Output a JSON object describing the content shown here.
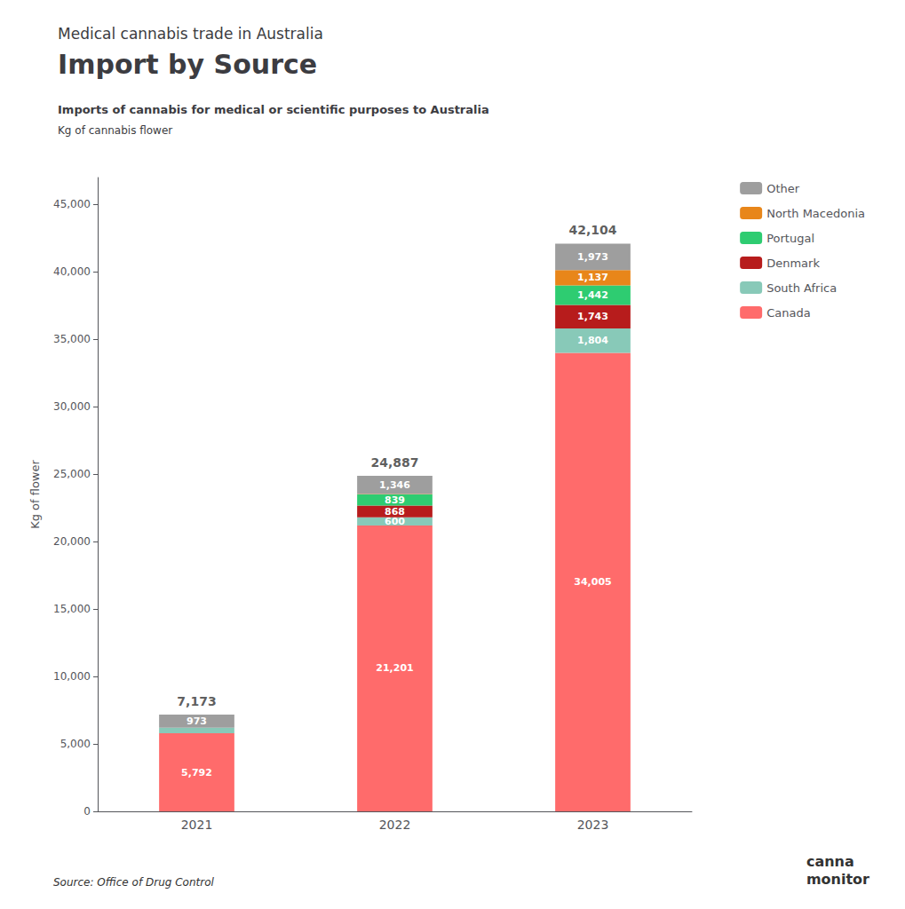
{
  "chart_data": {
    "type": "bar",
    "stacked": true,
    "title": [
      "Medical cannabis trade in Australia",
      "Import by Source"
    ],
    "subtitle": [
      "Imports of cannabis for medical or scientific purposes to Australia",
      "Kg of cannabis flower"
    ],
    "ylabel": "Kg of flower",
    "annotations": [
      "Source: Office of Drug Control",
      "canna\nmonitor"
    ],
    "categories": [
      "2021",
      "2022",
      "2023"
    ],
    "series": [
      {
        "name": "Canada",
        "color": "#FF6B6B",
        "values": [
          5792,
          21201,
          34005
        ],
        "value_labels": [
          "5,792",
          "21,201",
          "34,005"
        ]
      },
      {
        "name": "South Africa",
        "color": "#88C9B8",
        "values": [
          408,
          600,
          1804
        ],
        "value_labels": [
          null,
          "600",
          "1,804"
        ]
      },
      {
        "name": "Denmark",
        "color": "#B71C1C",
        "values": [
          0,
          868,
          1743
        ],
        "value_labels": [
          null,
          "868",
          "1,743"
        ]
      },
      {
        "name": "Portugal",
        "color": "#2ECC71",
        "values": [
          0,
          839,
          1442
        ],
        "value_labels": [
          null,
          "839",
          "1,442"
        ]
      },
      {
        "name": "North Macedonia",
        "color": "#E8861A",
        "values": [
          0,
          33,
          1137
        ],
        "value_labels": [
          null,
          null,
          "1,137"
        ]
      },
      {
        "name": "Other",
        "color": "#9E9E9E",
        "values": [
          973,
          1346,
          1973
        ],
        "value_labels": [
          "973",
          "1,346",
          "1,973"
        ]
      }
    ],
    "totals": {
      "values": [
        7173,
        24887,
        42104
      ],
      "value_labels": [
        "7,173",
        "24,887",
        "42,104"
      ]
    },
    "data_labels": true,
    "ylim": [
      0,
      47000
    ],
    "yticks": [
      0,
      {
        "value": 5000,
        "label": "5,000"
      },
      {
        "value": 10000,
        "label": "10,000"
      },
      {
        "value": 15000,
        "label": "15,000"
      },
      {
        "value": 20000,
        "label": "20,000"
      },
      {
        "value": 25000,
        "label": "25,000"
      },
      {
        "value": 30000,
        "label": "30,000"
      },
      {
        "value": 35000,
        "label": "35,000"
      },
      {
        "value": 40000,
        "label": "40,000"
      },
      {
        "value": 45000,
        "label": "45,000"
      }
    ],
    "grid": false,
    "legend": "right"
  }
}
